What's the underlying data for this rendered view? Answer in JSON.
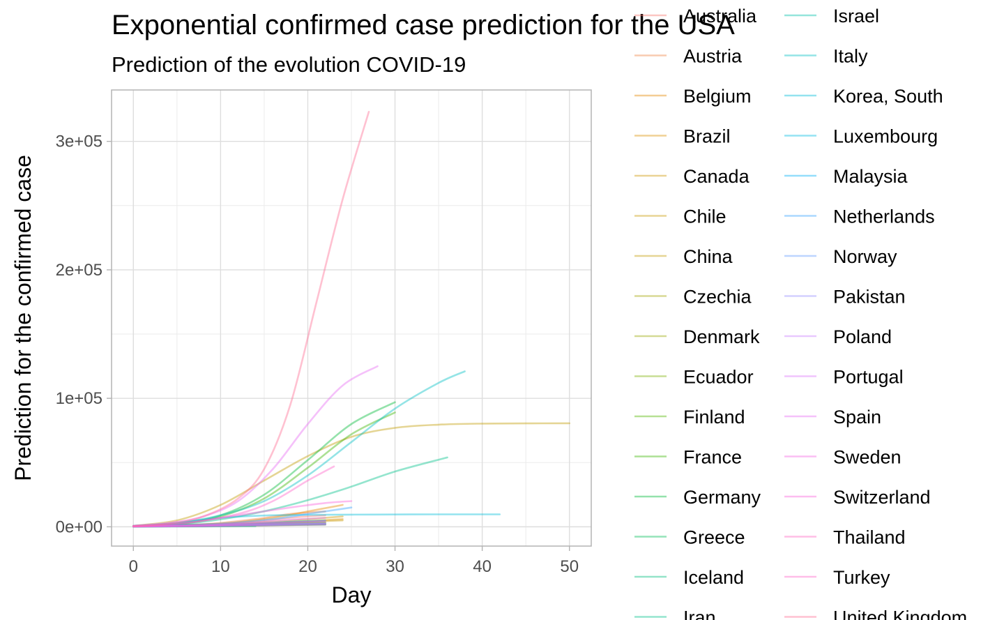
{
  "chart_data": {
    "type": "line",
    "title": "Exponential confirmed case prediction for the USA",
    "subtitle": "Prediction of the evolution COVID-19",
    "xlabel": "Day",
    "ylabel": "Prediction for the confirmed case",
    "xlim": [
      -2.5,
      52.5
    ],
    "ylim": [
      -15000,
      340000
    ],
    "x_ticks": [
      0,
      10,
      20,
      30,
      40,
      50
    ],
    "x_tick_labels": [
      "0",
      "10",
      "20",
      "30",
      "40",
      "50"
    ],
    "y_ticks": [
      0,
      100000,
      200000,
      300000
    ],
    "y_tick_labels": [
      "0e+00",
      "1e+05",
      "2e+05",
      "3e+05"
    ],
    "grid": true,
    "legend_position": "right",
    "legend_columns": 2,
    "series": [
      {
        "name": "Australia",
        "color": "#F8766D",
        "x": [
          0,
          8,
          14,
          18,
          22
        ],
        "y": [
          500,
          1500,
          4000,
          7000,
          9000
        ]
      },
      {
        "name": "Austria",
        "color": "#EE8043",
        "x": [
          0,
          8,
          14,
          18,
          22
        ],
        "y": [
          500,
          2000,
          6000,
          10000,
          12000
        ]
      },
      {
        "name": "Belgium",
        "color": "#E58700",
        "x": [
          0,
          10,
          16,
          20,
          24
        ],
        "y": [
          500,
          2500,
          7000,
          12000,
          17000
        ]
      },
      {
        "name": "Brazil",
        "color": "#DB8E00",
        "x": [
          0,
          10,
          16,
          20,
          24
        ],
        "y": [
          500,
          1500,
          3000,
          4500,
          6000
        ]
      },
      {
        "name": "Canada",
        "color": "#CD9600",
        "x": [
          0,
          10,
          16,
          20,
          24
        ],
        "y": [
          500,
          2000,
          4000,
          6000,
          8000
        ]
      },
      {
        "name": "Chile",
        "color": "#C99800",
        "x": [
          0,
          10,
          16,
          20,
          24
        ],
        "y": [
          500,
          1500,
          3000,
          4000,
          5000
        ]
      },
      {
        "name": "China",
        "color": "#C09B00",
        "x": [
          0,
          5,
          10,
          15,
          20,
          25,
          30,
          35,
          40,
          45,
          50
        ],
        "y": [
          800,
          5000,
          17000,
          36000,
          55000,
          70000,
          77000,
          79500,
          80300,
          80500,
          80600
        ]
      },
      {
        "name": "Czechia",
        "color": "#A3A500",
        "x": [
          0,
          8,
          14,
          18,
          22
        ],
        "y": [
          300,
          800,
          1800,
          2500,
          3000
        ]
      },
      {
        "name": "Denmark",
        "color": "#99A800",
        "x": [
          0,
          8,
          14,
          18,
          22
        ],
        "y": [
          300,
          900,
          1800,
          2300,
          2700
        ]
      },
      {
        "name": "Ecuador",
        "color": "#7CAE00",
        "x": [
          0,
          8,
          14,
          18,
          22
        ],
        "y": [
          300,
          1000,
          2000,
          3000,
          3500
        ]
      },
      {
        "name": "Finland",
        "color": "#53B400",
        "x": [
          0,
          8,
          14,
          18,
          22
        ],
        "y": [
          200,
          500,
          1000,
          1400,
          1700
        ]
      },
      {
        "name": "France",
        "color": "#39B600",
        "x": [
          0,
          5,
          10,
          15,
          20,
          25,
          30
        ],
        "y": [
          500,
          2000,
          8000,
          22000,
          46000,
          72000,
          89000
        ]
      },
      {
        "name": "Germany",
        "color": "#00BA38",
        "x": [
          0,
          5,
          10,
          15,
          20,
          25,
          30
        ],
        "y": [
          500,
          2500,
          9000,
          25000,
          52000,
          80000,
          97000
        ]
      },
      {
        "name": "Greece",
        "color": "#00BC56",
        "x": [
          0,
          8,
          14,
          18,
          22
        ],
        "y": [
          200,
          500,
          1000,
          1500,
          1800
        ]
      },
      {
        "name": "Iceland",
        "color": "#00BF7D",
        "x": [
          0,
          8,
          14
        ],
        "y": [
          100,
          300,
          500
        ]
      },
      {
        "name": "Iran",
        "color": "#00C08B",
        "x": [
          0,
          6,
          12,
          18,
          24,
          30,
          36
        ],
        "y": [
          500,
          2500,
          8000,
          17000,
          29000,
          43000,
          54000
        ]
      },
      {
        "name": "Israel",
        "color": "#00C1AA",
        "x": [
          0,
          8,
          14,
          18,
          22
        ],
        "y": [
          300,
          1000,
          2500,
          4000,
          5000
        ]
      },
      {
        "name": "Italy",
        "color": "#00BFC4",
        "x": [
          0,
          5,
          10,
          15,
          20,
          25,
          30,
          35,
          38
        ],
        "y": [
          800,
          3000,
          9000,
          20000,
          40000,
          66000,
          92000,
          112000,
          121000
        ]
      },
      {
        "name": "Korea, South",
        "color": "#00BCD8",
        "x": [
          0,
          5,
          10,
          15,
          20,
          25,
          30,
          35,
          42
        ],
        "y": [
          500,
          3000,
          7000,
          8800,
          9300,
          9500,
          9600,
          9700,
          9700
        ]
      },
      {
        "name": "Luxembourg",
        "color": "#00B9E3",
        "x": [
          0,
          8,
          14,
          18,
          22
        ],
        "y": [
          200,
          600,
          1200,
          1600,
          1900
        ]
      },
      {
        "name": "Malaysia",
        "color": "#00B0F6",
        "x": [
          0,
          8,
          14,
          18,
          22
        ],
        "y": [
          300,
          700,
          1500,
          2000,
          2500
        ]
      },
      {
        "name": "Netherlands",
        "color": "#35A2FF",
        "x": [
          0,
          10,
          16,
          20,
          25
        ],
        "y": [
          500,
          2500,
          6000,
          10000,
          15000
        ]
      },
      {
        "name": "Norway",
        "color": "#619CFF",
        "x": [
          0,
          8,
          14,
          18,
          22
        ],
        "y": [
          300,
          1200,
          2500,
          3500,
          4500
        ]
      },
      {
        "name": "Pakistan",
        "color": "#9590FF",
        "x": [
          0,
          8,
          14,
          18,
          22
        ],
        "y": [
          300,
          800,
          1500,
          2000,
          2500
        ]
      },
      {
        "name": "Poland",
        "color": "#C77CFF",
        "x": [
          0,
          8,
          14,
          18,
          22
        ],
        "y": [
          200,
          800,
          1600,
          2200,
          2800
        ]
      },
      {
        "name": "Portugal",
        "color": "#DB72FB",
        "x": [
          0,
          8,
          14,
          18,
          22
        ],
        "y": [
          300,
          1500,
          3500,
          5500,
          7000
        ]
      },
      {
        "name": "Spain",
        "color": "#E76BF3",
        "x": [
          0,
          4,
          8,
          12,
          16,
          20,
          24,
          28
        ],
        "y": [
          800,
          3000,
          8000,
          20000,
          45000,
          80000,
          110000,
          125000
        ]
      },
      {
        "name": "Sweden",
        "color": "#F564E3",
        "x": [
          0,
          8,
          14,
          18,
          22
        ],
        "y": [
          300,
          1000,
          2500,
          3500,
          4500
        ]
      },
      {
        "name": "Switzerland",
        "color": "#FA62DB",
        "x": [
          0,
          6,
          12,
          18,
          22,
          25
        ],
        "y": [
          500,
          3000,
          9000,
          15000,
          18500,
          20000
        ]
      },
      {
        "name": "Thailand",
        "color": "#FF61C3",
        "x": [
          0,
          8,
          14,
          18,
          22
        ],
        "y": [
          200,
          500,
          1000,
          1400,
          1700
        ]
      },
      {
        "name": "Turkey",
        "color": "#FF61C9",
        "x": [
          0,
          6,
          12,
          16,
          20,
          23
        ],
        "y": [
          500,
          3000,
          10000,
          20000,
          36000,
          47000
        ]
      },
      {
        "name": "United Kingdom",
        "color": "#FF6C91",
        "x": [
          0,
          4,
          8,
          12,
          15,
          18,
          21,
          24,
          27
        ],
        "y": [
          500,
          2500,
          8000,
          22000,
          45000,
          95000,
          175000,
          255000,
          323000
        ]
      }
    ]
  }
}
